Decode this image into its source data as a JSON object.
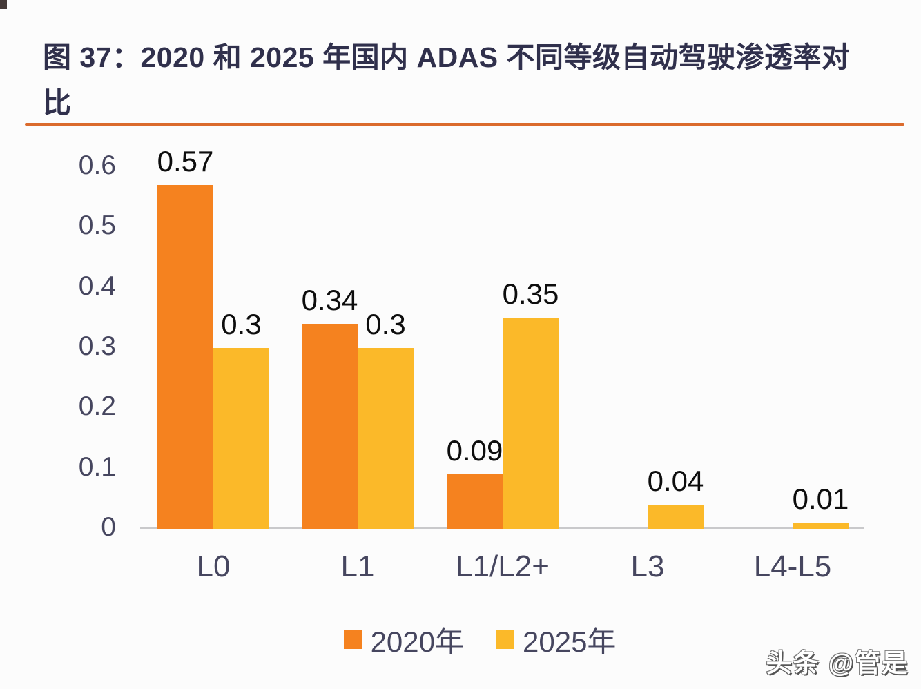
{
  "page": {
    "title": "图 37：2020 和 2025 年国内 ADAS 不同等级自动驾驶渗透率对比",
    "watermark": "头条 @管是"
  },
  "colors": {
    "series_2020": "#F5821F",
    "series_2025": "#FBB929",
    "title_rule": "#DB6B2D",
    "axis_line": "#C9C9CB",
    "tick_text": "#46465F",
    "value_label_text": "#0D0D0D",
    "title_text": "#30304C",
    "background": "#FCFCFC"
  },
  "legend": {
    "items": [
      {
        "label": "2020年",
        "color": "#F5821F"
      },
      {
        "label": "2025年",
        "color": "#FBB929"
      }
    ]
  },
  "chart_data": {
    "type": "bar",
    "title": "图 37：2020 和 2025 年国内 ADAS 不同等级自动驾驶渗透率对比",
    "categories": [
      "L0",
      "L1",
      "L1/L2+",
      "L3",
      "L4-L5"
    ],
    "series": [
      {
        "name": "2020年",
        "color": "#F5821F",
        "values": [
          0.57,
          0.34,
          0.09,
          null,
          null
        ]
      },
      {
        "name": "2025年",
        "color": "#FBB929",
        "values": [
          0.3,
          0.3,
          0.35,
          0.04,
          0.01
        ]
      }
    ],
    "xlabel": "",
    "ylabel": "",
    "ylim": [
      0,
      0.6
    ],
    "yticks": [
      0,
      0.1,
      0.2,
      0.3,
      0.4,
      0.5,
      0.6
    ],
    "grid": false,
    "legend_position": "bottom",
    "value_labels": true
  }
}
